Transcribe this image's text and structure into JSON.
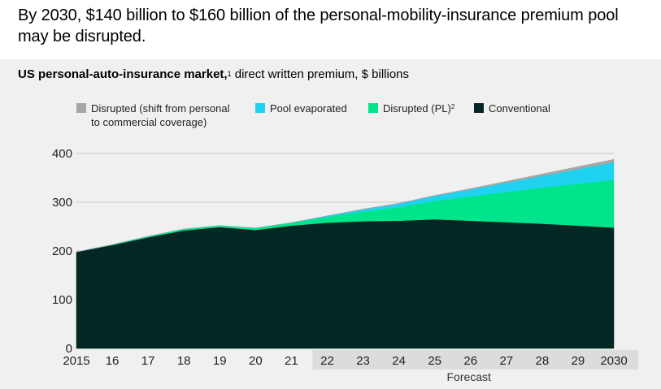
{
  "header": {
    "title": "By 2030, $140 billion to $160 billion of the personal-mobility-insurance premium pool may be disrupted."
  },
  "subtitle": {
    "bold": "US personal-auto-insurance market,",
    "footnote": "1",
    "rest": " direct written premium, $ billions"
  },
  "legend": {
    "items": [
      {
        "label": "Disrupted (shift from personal",
        "label2": "to commercial coverage)",
        "footnote": "",
        "color": "#a6a6a6"
      },
      {
        "label": "Pool evaporated",
        "label2": "",
        "footnote": "",
        "color": "#1fd2f2"
      },
      {
        "label": "Disrupted (PL)",
        "label2": "",
        "footnote": "2",
        "color": "#00e48c"
      },
      {
        "label": "Conventional",
        "label2": "",
        "footnote": "",
        "color": "#032823"
      }
    ]
  },
  "chart_data": {
    "type": "area",
    "stacked": true,
    "x": [
      "2015",
      "16",
      "17",
      "18",
      "19",
      "20",
      "21",
      "22",
      "23",
      "24",
      "25",
      "26",
      "27",
      "28",
      "29",
      "2030"
    ],
    "ylim": [
      0,
      400
    ],
    "yticks": [
      0,
      100,
      200,
      300,
      400
    ],
    "grid": true,
    "forecast_label": "Forecast",
    "forecast_start_index": 7,
    "series": [
      {
        "name": "Conventional",
        "color": "#032823",
        "values": [
          198,
          212,
          228,
          242,
          249,
          243,
          252,
          258,
          261,
          262,
          265,
          262,
          259,
          256,
          252,
          248
        ]
      },
      {
        "name": "Disrupted (PL)",
        "color": "#00e48c",
        "values": [
          0,
          1,
          2,
          3,
          3,
          4,
          6,
          12,
          20,
          28,
          38,
          50,
          62,
          74,
          86,
          98
        ]
      },
      {
        "name": "Pool evaporated",
        "color": "#1fd2f2",
        "values": [
          0,
          0,
          0,
          0,
          0,
          0,
          0,
          2,
          4,
          7,
          10,
          14,
          19,
          24,
          30,
          36
        ]
      },
      {
        "name": "Disrupted (shift from personal to commercial coverage)",
        "color": "#a6a6a6",
        "values": [
          0,
          0,
          0,
          0,
          0,
          0,
          0,
          0,
          1,
          1,
          1,
          2,
          3,
          4,
          5,
          6
        ]
      }
    ]
  }
}
